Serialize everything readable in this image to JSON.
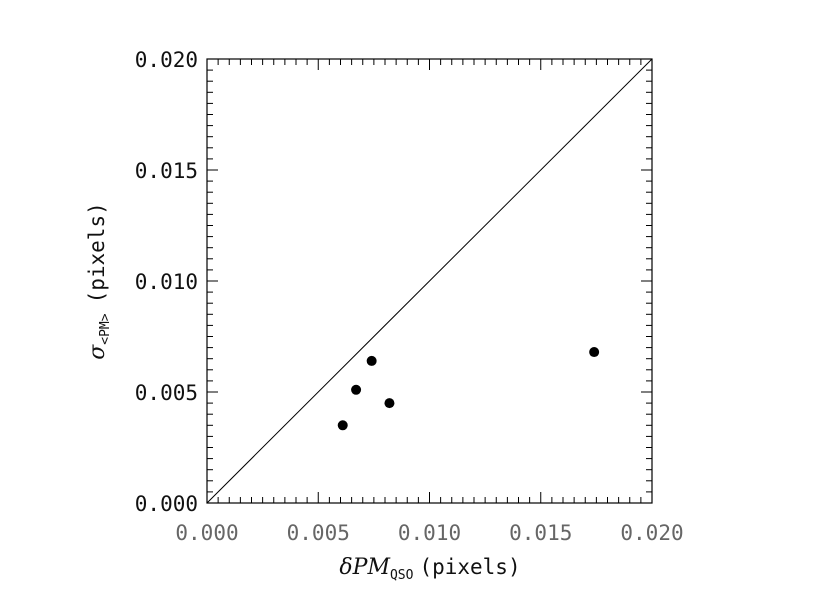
{
  "chart_data": {
    "type": "scatter",
    "title": "",
    "xlabel": {
      "symbol": "δPM",
      "subscript": "QSO",
      "suffix": "(pixels)"
    },
    "ylabel": {
      "symbol": "σ",
      "subscript": "<PM>",
      "suffix": "(pixels)"
    },
    "xlim": [
      0.0,
      0.02
    ],
    "ylim": [
      0.0,
      0.02
    ],
    "xticks": [
      "0.000",
      "0.005",
      "0.010",
      "0.015",
      "0.020"
    ],
    "yticks": [
      "0.000",
      "0.005",
      "0.010",
      "0.015",
      "0.020"
    ],
    "grid": false,
    "legend": "none",
    "reference_line": {
      "x": [
        0.0,
        0.02
      ],
      "y": [
        0.0,
        0.02
      ]
    },
    "points": [
      {
        "x": 0.0061,
        "y": 0.0035
      },
      {
        "x": 0.0067,
        "y": 0.0051
      },
      {
        "x": 0.0074,
        "y": 0.0064
      },
      {
        "x": 0.0082,
        "y": 0.0045
      },
      {
        "x": 0.0174,
        "y": 0.0068
      }
    ]
  }
}
